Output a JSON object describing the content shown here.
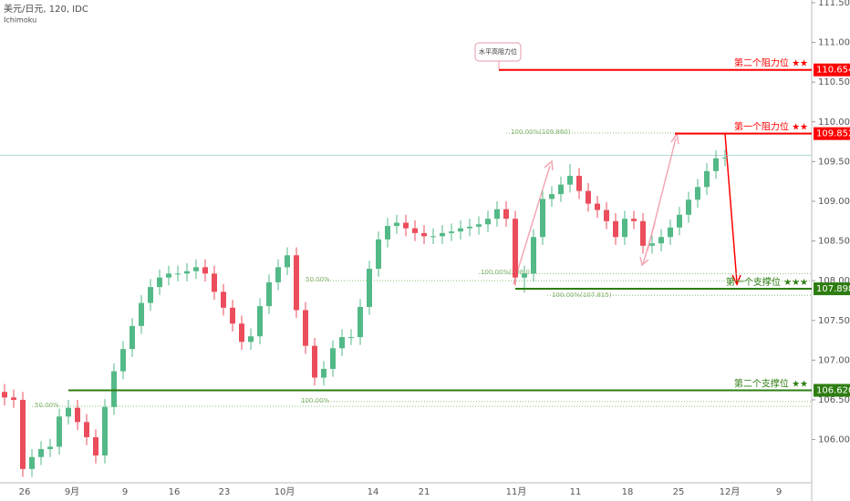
{
  "chart_data": {
    "type": "candlestick",
    "title": "美元/日元, 120, IDC",
    "subtitle": "Ichimoku",
    "open": [
      106.6,
      106.53,
      106.5,
      105.63,
      105.78,
      105.88,
      105.91,
      106.29,
      106.4,
      106.22,
      106.03,
      105.8,
      106.41,
      106.86,
      107.14,
      107.43,
      107.72,
      107.92,
      108.04,
      108.09,
      108.09,
      108.12,
      108.17,
      108.09,
      107.86,
      107.66,
      107.46,
      107.23,
      107.3,
      107.68,
      107.98,
      108.17,
      108.32,
      107.63,
      107.18,
      106.78,
      106.89,
      107.15,
      107.29,
      107.29,
      107.67,
      108.15,
      108.52,
      108.69,
      108.73,
      108.66,
      108.6,
      108.56,
      108.56,
      108.6,
      108.62,
      108.66,
      108.68,
      108.71,
      108.78,
      108.9,
      108.78,
      108.04,
      108.09,
      108.55,
      109.03,
      109.09,
      109.21,
      109.32,
      109.13,
      108.97,
      108.89,
      108.75,
      108.55,
      108.78,
      108.75,
      108.44,
      108.47,
      108.55,
      108.67,
      108.83,
      109.02,
      109.18,
      109.38,
      109.54
    ],
    "high": [
      106.7,
      106.63,
      106.6,
      105.88,
      105.98,
      106.01,
      106.39,
      106.5,
      106.5,
      106.32,
      106.13,
      106.51,
      106.96,
      107.24,
      107.53,
      107.82,
      108.02,
      108.14,
      108.19,
      108.19,
      108.22,
      108.27,
      108.27,
      108.19,
      107.96,
      107.76,
      107.56,
      107.4,
      107.78,
      108.08,
      108.27,
      108.42,
      108.42,
      107.73,
      107.28,
      106.99,
      107.25,
      107.39,
      107.39,
      107.77,
      108.25,
      108.62,
      108.79,
      108.83,
      108.83,
      108.76,
      108.7,
      108.66,
      108.7,
      108.72,
      108.76,
      108.78,
      108.81,
      108.88,
      109.0,
      109.0,
      108.88,
      108.19,
      108.65,
      109.13,
      109.19,
      109.31,
      109.47,
      109.42,
      109.23,
      109.07,
      108.99,
      108.85,
      108.88,
      108.88,
      108.85,
      108.57,
      108.65,
      108.77,
      108.93,
      109.12,
      109.28,
      109.48,
      109.64,
      109.65
    ],
    "low": [
      106.43,
      106.4,
      105.53,
      105.53,
      105.68,
      105.78,
      105.81,
      106.19,
      106.12,
      105.93,
      105.7,
      105.7,
      106.31,
      106.76,
      107.04,
      107.33,
      107.62,
      107.82,
      107.94,
      107.99,
      107.99,
      108.02,
      107.99,
      107.76,
      107.56,
      107.36,
      107.13,
      107.13,
      107.2,
      107.58,
      107.88,
      108.07,
      107.53,
      107.08,
      106.68,
      106.68,
      106.79,
      107.05,
      107.19,
      107.19,
      107.57,
      108.05,
      108.42,
      108.59,
      108.56,
      108.5,
      108.46,
      108.46,
      108.46,
      108.5,
      108.52,
      108.56,
      108.58,
      108.61,
      108.68,
      108.68,
      107.94,
      107.85,
      107.99,
      108.45,
      108.93,
      108.99,
      109.11,
      109.03,
      108.87,
      108.79,
      108.65,
      108.45,
      108.45,
      108.65,
      108.34,
      108.34,
      108.37,
      108.45,
      108.57,
      108.73,
      108.92,
      109.08,
      109.28,
      109.44
    ],
    "close": [
      106.53,
      106.5,
      105.63,
      105.78,
      105.88,
      105.91,
      106.29,
      106.4,
      106.22,
      106.03,
      105.8,
      106.41,
      106.86,
      107.14,
      107.43,
      107.72,
      107.92,
      108.04,
      108.09,
      108.09,
      108.12,
      108.17,
      108.09,
      107.86,
      107.66,
      107.46,
      107.23,
      107.3,
      107.68,
      107.98,
      108.17,
      108.32,
      107.63,
      107.18,
      106.78,
      106.89,
      107.15,
      107.29,
      107.29,
      107.67,
      108.15,
      108.52,
      108.69,
      108.73,
      108.66,
      108.6,
      108.56,
      108.56,
      108.6,
      108.62,
      108.66,
      108.68,
      108.71,
      108.78,
      108.9,
      108.78,
      108.04,
      108.09,
      108.55,
      109.03,
      109.09,
      109.21,
      109.32,
      109.13,
      108.97,
      108.89,
      108.75,
      108.55,
      108.78,
      108.75,
      108.44,
      108.47,
      108.55,
      108.67,
      108.83,
      109.02,
      109.18,
      109.38,
      109.54,
      109.55
    ],
    "up_color": "#53b987",
    "down_color": "#eb4d5c",
    "ylim": [
      105.456,
      111.534
    ],
    "yticks": [
      {
        "value": 106,
        "label": "106.000"
      },
      {
        "value": 106.5,
        "label": "106.500"
      },
      {
        "value": 107,
        "label": "107.000"
      },
      {
        "value": 107.5,
        "label": "107.500"
      },
      {
        "value": 108,
        "label": "108.000"
      },
      {
        "value": 108.5,
        "label": "108.500"
      },
      {
        "value": 109,
        "label": "109.000"
      },
      {
        "value": 109.5,
        "label": "109.500"
      },
      {
        "value": 110,
        "label": "110.000"
      },
      {
        "value": 110.5,
        "label": "110.500"
      },
      {
        "value": 111,
        "label": "111.000"
      },
      {
        "value": 111.5,
        "label": "111.500"
      }
    ],
    "x_labels": [
      "26",
      "9月",
      "9",
      "16",
      "23",
      "10月",
      "14",
      "21",
      "11月",
      "11",
      "18",
      "25",
      "12月",
      "9"
    ],
    "last_price": 109.58,
    "levels": [
      {
        "label": "第二个阻力位 ★★",
        "value": 110.654,
        "value_label": "110.654",
        "color": "#ff0000"
      },
      {
        "label": "第一个阻力位 ★★",
        "value": 109.852,
        "value_label": "109.852",
        "color": "#ff0000"
      },
      {
        "label": "第一个支撑位 ★★★",
        "value": 107.898,
        "value_label": "107.898",
        "color": "#2e7d12"
      },
      {
        "label": "第二个支撑位 ★★",
        "value": 106.62,
        "value_label": "106.620",
        "color": "#2e7d12"
      }
    ],
    "fib": [
      {
        "label": "100.00%(109.860)",
        "value": 109.86
      },
      {
        "label": "50.00%",
        "value": 108.0
      },
      {
        "label": "100.00%(108.0",
        "value": 108.09
      },
      {
        "label": "100.00%(107.815)",
        "value": 107.815
      },
      {
        "label": "50.00%",
        "value": 106.42
      },
      {
        "label": "100.00%",
        "value": 106.48
      }
    ],
    "callout": "水平高阻力位"
  }
}
